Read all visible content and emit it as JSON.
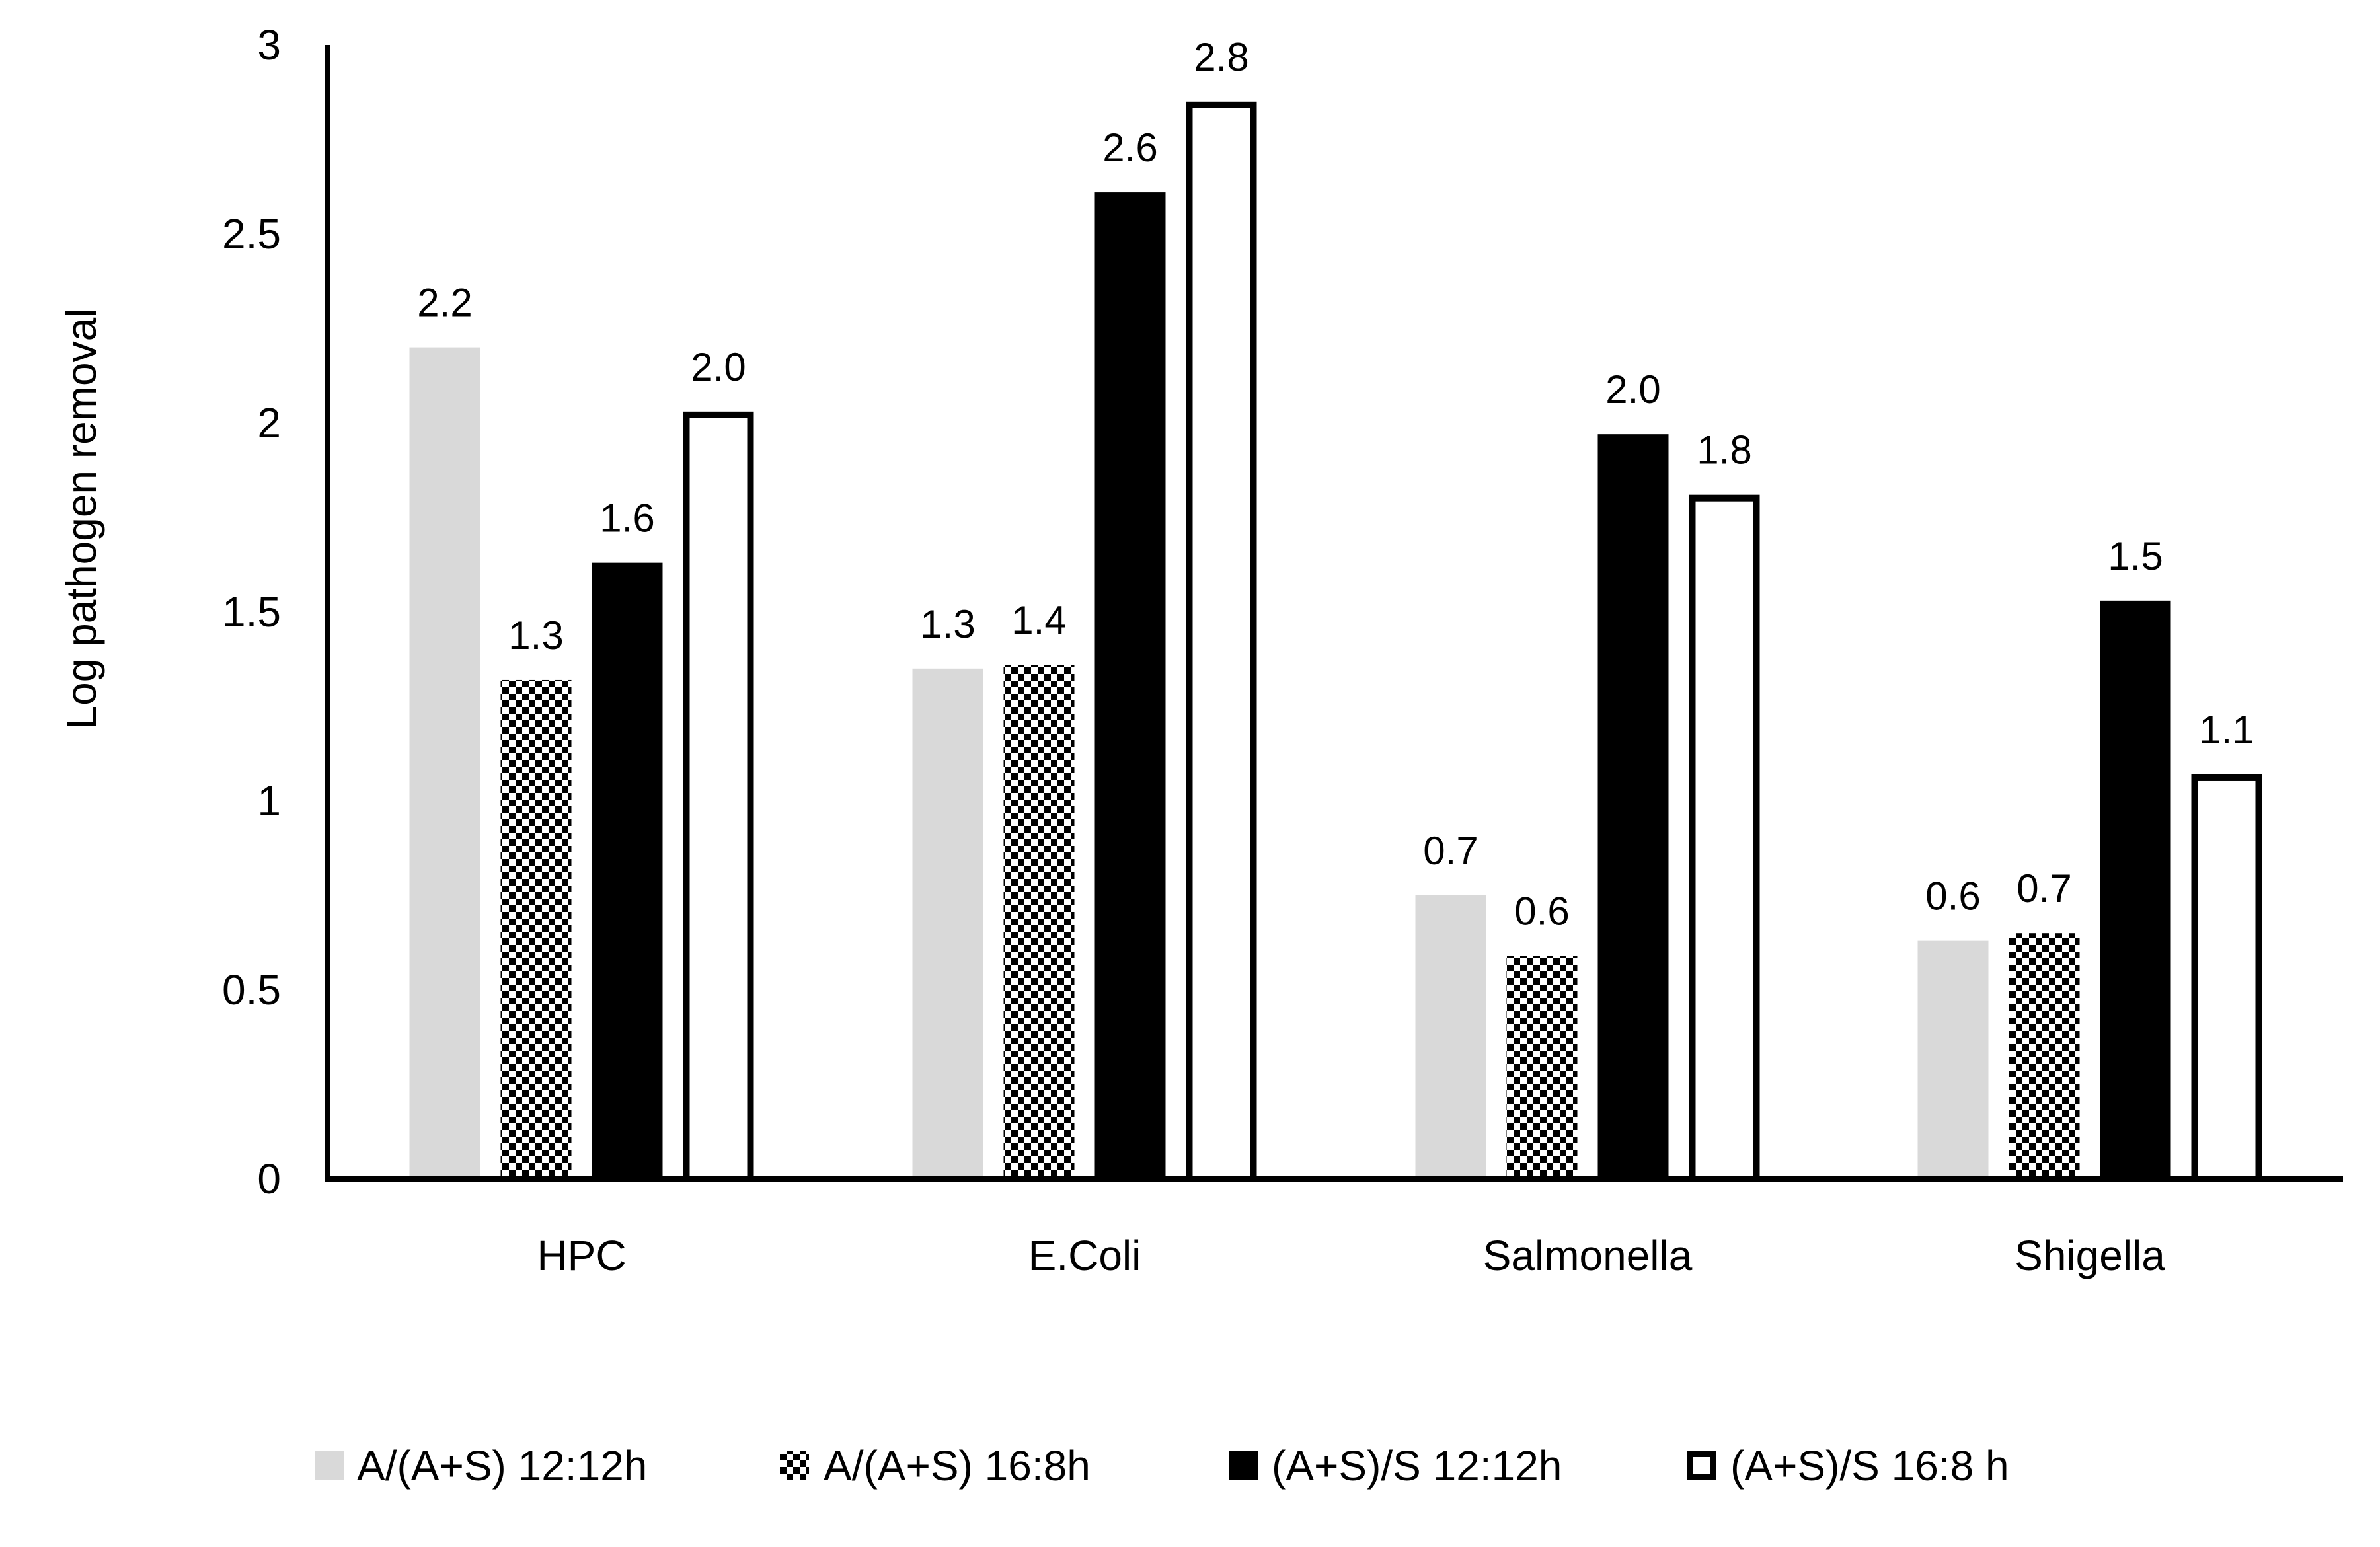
{
  "chart_data": {
    "type": "bar",
    "title": "",
    "xlabel": "",
    "ylabel": "Log pathogen removal",
    "ylim": [
      0,
      3
    ],
    "yticks": [
      "0",
      "0.5",
      "1",
      "1.5",
      "2",
      "2.5",
      "3"
    ],
    "categories": [
      "HPC",
      "E.Coli",
      "Salmonella",
      "Shigella"
    ],
    "series": [
      {
        "name": "A/(A+S) 12:12h",
        "style": "light-gray",
        "color": "#d9d9d9",
        "values": [
          2.2,
          1.35,
          0.75,
          0.63
        ],
        "labels": [
          "2.2",
          "1.3",
          "0.7",
          "0.6"
        ]
      },
      {
        "name": "A/(A+S) 16:8h",
        "style": "checker",
        "color": "#000000",
        "values": [
          1.32,
          1.36,
          0.59,
          0.65
        ],
        "labels": [
          "1.3",
          "1.4",
          "0.6",
          "0.7"
        ]
      },
      {
        "name": "(A+S)/S 12:12h",
        "style": "solid-black",
        "color": "#000000",
        "values": [
          1.63,
          2.61,
          1.97,
          1.53
        ],
        "labels": [
          "1.6",
          "2.6",
          "2.0",
          "1.5"
        ]
      },
      {
        "name": "(A+S)/S 16:8 h",
        "style": "white-outline",
        "color": "#ffffff",
        "values": [
          2.03,
          2.85,
          1.81,
          1.07
        ],
        "labels": [
          "2.0",
          "2.8",
          "1.8",
          "1.1"
        ]
      }
    ],
    "legend_position": "bottom"
  }
}
